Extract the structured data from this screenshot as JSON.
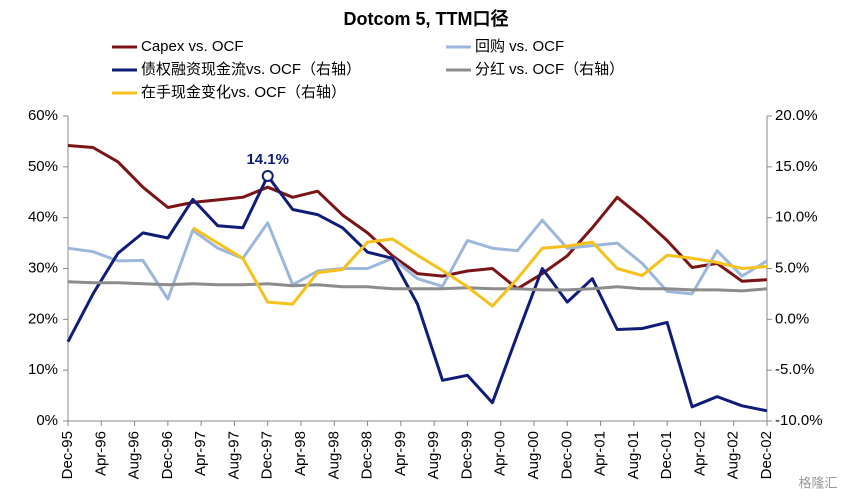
{
  "chart_data": {
    "type": "line",
    "title": "Dotcom 5, TTM口径",
    "annotation": "14.1%",
    "watermark": "格隆汇",
    "x": [
      0,
      3,
      6,
      9,
      12,
      15,
      18,
      21,
      24,
      27,
      30,
      33,
      36,
      39,
      42,
      45,
      48,
      51,
      54,
      57,
      60,
      63,
      66,
      69,
      72,
      75,
      78,
      81,
      84
    ],
    "xlim": [
      0,
      84
    ],
    "xticks": [
      {
        "value": 0,
        "label": "Dec-95"
      },
      {
        "value": 4,
        "label": "Apr-96"
      },
      {
        "value": 8,
        "label": "Aug-96"
      },
      {
        "value": 12,
        "label": "Dec-96"
      },
      {
        "value": 16,
        "label": "Apr-97"
      },
      {
        "value": 20,
        "label": "Aug-97"
      },
      {
        "value": 24,
        "label": "Dec-97"
      },
      {
        "value": 28,
        "label": "Apr-98"
      },
      {
        "value": 32,
        "label": "Aug-98"
      },
      {
        "value": 36,
        "label": "Dec-98"
      },
      {
        "value": 40,
        "label": "Apr-99"
      },
      {
        "value": 44,
        "label": "Aug-99"
      },
      {
        "value": 48,
        "label": "Dec-99"
      },
      {
        "value": 52,
        "label": "Apr-00"
      },
      {
        "value": 56,
        "label": "Aug-00"
      },
      {
        "value": 60,
        "label": "Dec-00"
      },
      {
        "value": 64,
        "label": "Apr-01"
      },
      {
        "value": 68,
        "label": "Aug-01"
      },
      {
        "value": 72,
        "label": "Dec-01"
      },
      {
        "value": 76,
        "label": "Apr-02"
      },
      {
        "value": 80,
        "label": "Aug-02"
      },
      {
        "value": 84,
        "label": "Dec-02"
      }
    ],
    "ylim": [
      0,
      60
    ],
    "yticks": [
      {
        "value": 0,
        "label": "0%"
      },
      {
        "value": 10,
        "label": "10%"
      },
      {
        "value": 20,
        "label": "20%"
      },
      {
        "value": 30,
        "label": "30%"
      },
      {
        "value": 40,
        "label": "40%"
      },
      {
        "value": 50,
        "label": "50%"
      },
      {
        "value": 60,
        "label": "60%"
      }
    ],
    "y2lim": [
      -10,
      20
    ],
    "y2ticks": [
      {
        "value": -10,
        "label": "-10.0%"
      },
      {
        "value": -5,
        "label": "-5.0%"
      },
      {
        "value": 0,
        "label": "0.0%"
      },
      {
        "value": 5,
        "label": "5.0%"
      },
      {
        "value": 10,
        "label": "10.0%"
      },
      {
        "value": 15,
        "label": "15.0%"
      },
      {
        "value": 20,
        "label": "20.0%"
      }
    ],
    "series": [
      {
        "name": "Capex vs. OCF",
        "color": "#7b1416",
        "axis": "y",
        "values": [
          54.2,
          53.8,
          51,
          46,
          42,
          43,
          43.5,
          44,
          46,
          44,
          45.2,
          40.5,
          37,
          32.5,
          29,
          28.5,
          29.5,
          30,
          26,
          29,
          32.5,
          38,
          44,
          40,
          35.5,
          30.2,
          31,
          27.5,
          27.8
        ]
      },
      {
        "name": "回购 vs. OCF",
        "color": "#9db7dc",
        "axis": "y",
        "values": [
          34,
          33.3,
          31.5,
          31.6,
          24,
          37.5,
          34,
          32,
          39,
          26.8,
          29.5,
          30,
          30,
          32,
          28,
          26.5,
          35.5,
          34,
          33.5,
          39.5,
          34,
          34.5,
          35,
          31,
          25.5,
          25,
          33.5,
          28.5,
          31.5
        ]
      },
      {
        "name": "债权融资现金流vs. OCF（右轴）",
        "color": "#0f1c78",
        "axis": "y2",
        "values": [
          -2.2,
          2.5,
          6.5,
          8.5,
          8,
          11.8,
          9.2,
          9,
          14.1,
          10.8,
          10.3,
          9,
          6.6,
          6,
          1.5,
          -6,
          -5.5,
          -8.2,
          -1.5,
          5,
          1.7,
          4,
          -1,
          -0.9,
          -0.3,
          -8.6,
          -7.6,
          -8.5,
          -9
        ]
      },
      {
        "name": "分红 vs. OCF（右轴）",
        "color": "#8c8c8c",
        "axis": "y2",
        "values": [
          3.7,
          3.6,
          3.6,
          3.5,
          3.4,
          3.5,
          3.4,
          3.4,
          3.5,
          3.3,
          3.4,
          3.2,
          3.2,
          3.0,
          3.0,
          3.0,
          3.1,
          3.0,
          3.0,
          2.9,
          2.9,
          3.0,
          3.2,
          3.0,
          3.0,
          2.9,
          2.9,
          2.8,
          3.0
        ]
      },
      {
        "name": "在手现金变化vs. OCF（右轴）",
        "color": "#f5c11a",
        "axis": "y2",
        "values": [
          null,
          null,
          null,
          null,
          null,
          9.0,
          7.5,
          6.0,
          1.7,
          1.5,
          4.6,
          4.9,
          7.6,
          7.9,
          6.3,
          4.8,
          3.2,
          1.3,
          4.0,
          7.0,
          7.2,
          7.6,
          5.0,
          4.3,
          6.3,
          6.0,
          5.6,
          5.0,
          5.2
        ]
      }
    ]
  }
}
